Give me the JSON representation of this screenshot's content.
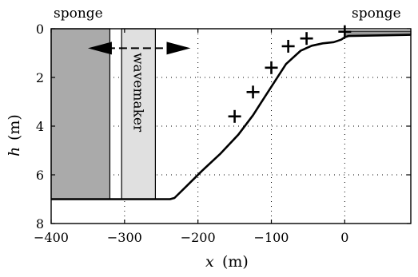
{
  "chart_data": {
    "type": "line",
    "xlabel": "x",
    "xunit": "(m)",
    "ylabel": "h",
    "yunit": "(m)",
    "xlim": [
      -400,
      90
    ],
    "ylim": [
      8,
      0
    ],
    "y_inverted": true,
    "grid": "dotted",
    "xticks": [
      -400,
      -300,
      -200,
      -100,
      0
    ],
    "xtick_labels": [
      "−400",
      "−300",
      "−200",
      "−100",
      "0"
    ],
    "yticks": [
      0,
      2,
      4,
      6,
      8
    ],
    "ytick_labels": [
      "0",
      "2",
      "4",
      "6",
      "8"
    ],
    "bathymetry": {
      "x": [
        -400,
        -238,
        -232,
        -215,
        -195,
        -170,
        -145,
        -125,
        -110,
        -95,
        -80,
        -60,
        -45,
        -30,
        -15,
        -5,
        0,
        5,
        90
      ],
      "y": [
        7.0,
        7.0,
        6.95,
        6.45,
        5.85,
        5.15,
        4.35,
        3.55,
        2.85,
        2.15,
        1.45,
        0.9,
        0.7,
        0.6,
        0.55,
        0.45,
        0.35,
        0.3,
        0.25
      ]
    },
    "measurements": {
      "marker": "plus",
      "x": [
        -150,
        -125,
        -100,
        -77,
        -52,
        0
      ],
      "y": [
        3.6,
        2.6,
        1.6,
        0.72,
        0.4,
        0.12
      ]
    },
    "sponge_left": {
      "label": "sponge",
      "x_range": [
        -400,
        -320
      ],
      "color": "#aaaaaa"
    },
    "wavemaker": {
      "label": "wavemaker",
      "x_range": [
        -304,
        -258
      ],
      "color": "#e0e0e0",
      "arrow_span": [
        -350,
        -210
      ],
      "arrow_y": 0.8
    },
    "sponge_right": {
      "label": "sponge",
      "x_range": [
        0,
        90
      ],
      "y_band": [
        0.1,
        0.35
      ],
      "color": "#999999"
    }
  }
}
